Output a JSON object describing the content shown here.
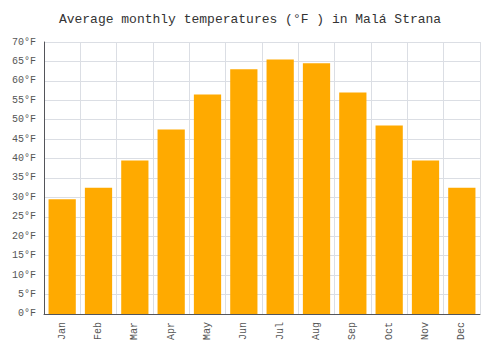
{
  "chart_data": {
    "type": "bar",
    "title": "Average monthly temperatures (°F ) in Malá Strana",
    "categories": [
      "Jan",
      "Feb",
      "Mar",
      "Apr",
      "May",
      "Jun",
      "Jul",
      "Aug",
      "Sep",
      "Oct",
      "Nov",
      "Dec"
    ],
    "values": [
      29.5,
      32.5,
      39.5,
      47.5,
      56.5,
      63.0,
      65.5,
      64.5,
      57.0,
      48.5,
      39.5,
      32.5
    ],
    "color": "#FFAA00",
    "ylim": [
      0,
      70
    ],
    "yticks": [
      {
        "value": 0,
        "label": "0°F"
      },
      {
        "value": 5,
        "label": "5°F"
      },
      {
        "value": 10,
        "label": "10°F"
      },
      {
        "value": 15,
        "label": "15°F"
      },
      {
        "value": 20,
        "label": "20°F"
      },
      {
        "value": 25,
        "label": "25°F"
      },
      {
        "value": 30,
        "label": "30°F"
      },
      {
        "value": 35,
        "label": "35°F"
      },
      {
        "value": 40,
        "label": "40°F"
      },
      {
        "value": 45,
        "label": "45°F"
      },
      {
        "value": 50,
        "label": "50°F"
      },
      {
        "value": 55,
        "label": "55°F"
      },
      {
        "value": 60,
        "label": "60°F"
      },
      {
        "value": 65,
        "label": "65°F"
      },
      {
        "value": 70,
        "label": "70°F"
      }
    ],
    "grid": true
  }
}
